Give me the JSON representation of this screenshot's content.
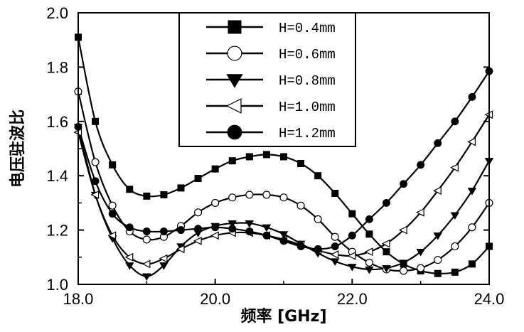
{
  "chart_data": {
    "type": "line",
    "xlabel": "频率 [GHz]",
    "ylabel": "电压驻波比",
    "xlim": [
      18.0,
      24.0
    ],
    "ylim": [
      1.0,
      2.0
    ],
    "x_ticks": [
      "18.0",
      "20.0",
      "22.0",
      "24.0"
    ],
    "y_ticks": [
      "1.0",
      "1.2",
      "1.4",
      "1.6",
      "1.8",
      "2.0"
    ],
    "grid": false,
    "legend_position": "top-center",
    "series": [
      {
        "name": "H=0.4mm",
        "marker": "square",
        "x": [
          18.0,
          18.25,
          18.5,
          18.75,
          19.0,
          19.25,
          19.5,
          19.75,
          20.0,
          20.25,
          20.5,
          20.75,
          21.0,
          21.25,
          21.5,
          21.75,
          22.0,
          22.25,
          22.5,
          22.75,
          23.0,
          23.25,
          23.5,
          23.75,
          24.0
        ],
        "y": [
          1.91,
          1.6,
          1.44,
          1.35,
          1.325,
          1.33,
          1.355,
          1.39,
          1.425,
          1.455,
          1.47,
          1.478,
          1.47,
          1.445,
          1.4,
          1.335,
          1.26,
          1.185,
          1.12,
          1.075,
          1.05,
          1.04,
          1.045,
          1.075,
          1.14
        ]
      },
      {
        "name": "H=0.6mm",
        "marker": "circle-open",
        "x": [
          18.0,
          18.25,
          18.5,
          18.75,
          19.0,
          19.25,
          19.5,
          19.75,
          20.0,
          20.25,
          20.5,
          20.75,
          21.0,
          21.25,
          21.5,
          21.75,
          22.0,
          22.25,
          22.5,
          22.75,
          23.0,
          23.25,
          23.5,
          23.75,
          24.0
        ],
        "y": [
          1.71,
          1.45,
          1.29,
          1.195,
          1.165,
          1.175,
          1.215,
          1.265,
          1.3,
          1.32,
          1.33,
          1.33,
          1.32,
          1.29,
          1.24,
          1.175,
          1.12,
          1.08,
          1.055,
          1.05,
          1.06,
          1.09,
          1.14,
          1.21,
          1.3
        ]
      },
      {
        "name": "H=0.8mm",
        "marker": "triangle-down",
        "x": [
          18.0,
          18.25,
          18.5,
          18.75,
          19.0,
          19.25,
          19.5,
          19.75,
          20.0,
          20.25,
          20.5,
          20.75,
          21.0,
          21.25,
          21.5,
          21.75,
          22.0,
          22.25,
          22.5,
          22.75,
          23.0,
          23.25,
          23.5,
          23.75,
          24.0
        ],
        "y": [
          1.58,
          1.33,
          1.17,
          1.07,
          1.03,
          1.07,
          1.14,
          1.19,
          1.215,
          1.225,
          1.225,
          1.21,
          1.185,
          1.15,
          1.115,
          1.085,
          1.065,
          1.055,
          1.06,
          1.08,
          1.12,
          1.18,
          1.255,
          1.345,
          1.455
        ]
      },
      {
        "name": "H=1.0mm",
        "marker": "triangle-left-open",
        "x": [
          18.0,
          18.25,
          18.5,
          18.75,
          19.0,
          19.25,
          19.5,
          19.75,
          20.0,
          20.25,
          20.5,
          20.75,
          21.0,
          21.25,
          21.5,
          21.75,
          22.0,
          22.25,
          22.5,
          22.75,
          23.0,
          23.25,
          23.5,
          23.75,
          24.0
        ],
        "y": [
          1.56,
          1.33,
          1.18,
          1.1,
          1.075,
          1.095,
          1.13,
          1.16,
          1.18,
          1.19,
          1.19,
          1.18,
          1.165,
          1.145,
          1.125,
          1.11,
          1.105,
          1.12,
          1.15,
          1.2,
          1.265,
          1.345,
          1.43,
          1.525,
          1.625
        ]
      },
      {
        "name": "H=1.2mm",
        "marker": "circle",
        "x": [
          18.0,
          18.25,
          18.5,
          18.75,
          19.0,
          19.25,
          19.5,
          19.75,
          20.0,
          20.25,
          20.5,
          20.75,
          21.0,
          21.25,
          21.5,
          21.75,
          22.0,
          22.25,
          22.5,
          22.75,
          23.0,
          23.25,
          23.5,
          23.75,
          24.0
        ],
        "y": [
          1.58,
          1.38,
          1.26,
          1.21,
          1.195,
          1.195,
          1.2,
          1.205,
          1.21,
          1.205,
          1.195,
          1.18,
          1.16,
          1.14,
          1.13,
          1.14,
          1.18,
          1.24,
          1.3,
          1.37,
          1.44,
          1.52,
          1.6,
          1.69,
          1.785
        ]
      }
    ]
  }
}
